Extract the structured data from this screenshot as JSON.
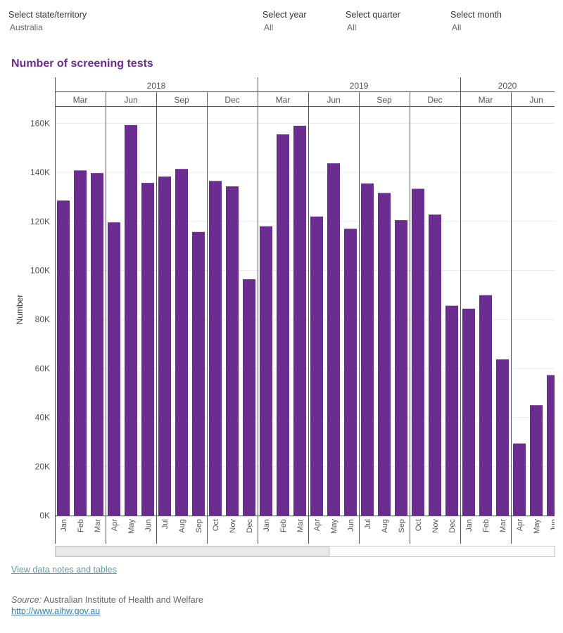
{
  "filters": {
    "state": {
      "label": "Select state/territory",
      "value": "Australia"
    },
    "year": {
      "label": "Select year",
      "value": "All"
    },
    "quarter": {
      "label": "Select quarter",
      "value": "All"
    },
    "month": {
      "label": "Select month",
      "value": "All"
    }
  },
  "links": {
    "notes": "View data notes and tables",
    "source_label": "Source:",
    "source_text": "Australian Institute of Health and Welfare",
    "source_url": "http://www.aihw.gov.au"
  },
  "colors": {
    "bar": "#6b2d8f",
    "title": "#6b2d8f",
    "link": "#5b9bb3"
  },
  "chart_data": {
    "type": "bar",
    "title": "Number of screening tests",
    "ylabel": "Number",
    "ylim": [
      0,
      167000
    ],
    "yticks": [
      0,
      20000,
      40000,
      60000,
      80000,
      100000,
      120000,
      140000,
      160000
    ],
    "ytick_labels": [
      "0K",
      "20K",
      "40K",
      "60K",
      "80K",
      "100K",
      "120K",
      "140K",
      "160K"
    ],
    "grid": true,
    "years": [
      {
        "label": "2018",
        "start": 0,
        "end": 12
      },
      {
        "label": "2019",
        "start": 12,
        "end": 24
      },
      {
        "label": "2020",
        "start": 24,
        "end": 30
      }
    ],
    "quarters": [
      {
        "label": "Mar",
        "start": 0,
        "end": 3
      },
      {
        "label": "Jun",
        "start": 3,
        "end": 6
      },
      {
        "label": "Sep",
        "start": 6,
        "end": 9
      },
      {
        "label": "Dec",
        "start": 9,
        "end": 12
      },
      {
        "label": "Mar",
        "start": 12,
        "end": 15
      },
      {
        "label": "Jun",
        "start": 15,
        "end": 18
      },
      {
        "label": "Sep",
        "start": 18,
        "end": 21
      },
      {
        "label": "Dec",
        "start": 21,
        "end": 24
      },
      {
        "label": "Mar",
        "start": 24,
        "end": 27
      },
      {
        "label": "Jun",
        "start": 27,
        "end": 30
      }
    ],
    "categories": [
      "Jan",
      "Feb",
      "Mar",
      "Apr",
      "May",
      "Jun",
      "Jul",
      "Aug",
      "Sep",
      "Oct",
      "Nov",
      "Dec",
      "Jan",
      "Feb",
      "Mar",
      "Apr",
      "May",
      "Jun",
      "Jul",
      "Aug",
      "Sep",
      "Oct",
      "Nov",
      "Dec",
      "Jan",
      "Feb",
      "Mar",
      "Apr",
      "May",
      "Jun"
    ],
    "values": [
      128500,
      140800,
      139700,
      119600,
      159300,
      135700,
      138300,
      141400,
      115700,
      136500,
      134300,
      96400,
      118000,
      155500,
      159000,
      122000,
      143700,
      117000,
      135500,
      131600,
      120500,
      133300,
      122800,
      85600,
      84400,
      89900,
      63700,
      29400,
      45000,
      57300
    ]
  }
}
